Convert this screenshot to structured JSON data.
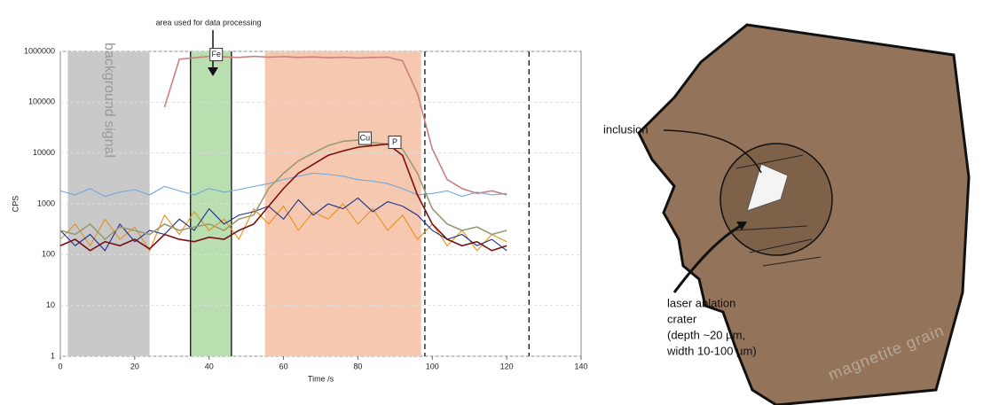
{
  "chart_data": {
    "type": "line",
    "x_label": "Time /s",
    "y_label": "CPS",
    "annotation": "area used for data processing",
    "log_y": true,
    "grid": true,
    "xlim": [
      0,
      140
    ],
    "xticks": [
      0,
      20,
      40,
      60,
      80,
      100,
      120,
      140
    ],
    "ylim": [
      1,
      1000000
    ],
    "yticks": [
      1,
      10,
      100,
      1000,
      10000,
      100000,
      1000000
    ],
    "regions": [
      {
        "label": "background signal",
        "x": [
          2,
          24
        ],
        "color": "#c9c9c9"
      },
      {
        "x": [
          35,
          46
        ],
        "color": "#b9deb0"
      },
      {
        "x": [
          55,
          97
        ],
        "color": "#f7c8b0"
      }
    ],
    "vlines": [
      {
        "x": 35,
        "style": "solid"
      },
      {
        "x": 46,
        "style": "solid"
      },
      {
        "x": 98,
        "style": "dashed"
      },
      {
        "x": 126,
        "style": "dashed"
      }
    ],
    "x": [
      0,
      4,
      8,
      12,
      16,
      20,
      24,
      28,
      32,
      36,
      40,
      44,
      48,
      52,
      56,
      60,
      64,
      68,
      72,
      76,
      80,
      84,
      88,
      92,
      96,
      100,
      104,
      108,
      112,
      116,
      120
    ],
    "series": [
      {
        "color": "#6fa8dc",
        "values": [
          1800,
          1500,
          2000,
          1400,
          1700,
          1900,
          1500,
          2200,
          1800,
          1500,
          2000,
          1700,
          1900,
          2200,
          2500,
          3000,
          3500,
          4000,
          3800,
          3500,
          3000,
          2800,
          2500,
          2000,
          1500,
          1600,
          1800,
          1400,
          1700,
          1500,
          1600
        ]
      },
      {
        "color": "#e8901c",
        "values": [
          200,
          400,
          150,
          500,
          200,
          350,
          120,
          600,
          250,
          700,
          300,
          500,
          200,
          800,
          400,
          900,
          300,
          700,
          500,
          1000,
          400,
          800,
          300,
          600,
          200,
          400,
          150,
          300,
          120,
          250,
          180
        ]
      },
      {
        "color": "#1b2f8a",
        "values": [
          300,
          150,
          250,
          120,
          400,
          180,
          300,
          250,
          500,
          300,
          800,
          400,
          600,
          700,
          900,
          500,
          1200,
          600,
          1000,
          800,
          1300,
          700,
          1100,
          900,
          600,
          300,
          200,
          250,
          150,
          200,
          120
        ]
      },
      {
        "name": "Fe",
        "color": "#c98080",
        "values": [
          null,
          null,
          null,
          null,
          null,
          null,
          null,
          80000,
          700000,
          750000,
          800000,
          780000,
          760000,
          800000,
          770000,
          790000,
          760000,
          780000,
          750000,
          770000,
          740000,
          760000,
          770000,
          650000,
          150000,
          12000,
          3000,
          2000,
          1600,
          1800,
          1500
        ]
      },
      {
        "name": "Cu",
        "color": "#9a9a70",
        "values": [
          300,
          250,
          400,
          200,
          350,
          300,
          250,
          400,
          300,
          350,
          400,
          300,
          500,
          600,
          2000,
          4000,
          7000,
          10000,
          14000,
          17000,
          18000,
          16000,
          15000,
          12000,
          4000,
          800,
          400,
          300,
          350,
          250,
          300
        ]
      },
      {
        "name": "P",
        "color": "#7a1010",
        "values": [
          150,
          200,
          120,
          180,
          150,
          200,
          130,
          250,
          200,
          180,
          220,
          200,
          300,
          400,
          900,
          2000,
          4000,
          6000,
          9000,
          11000,
          13000,
          14000,
          15000,
          9000,
          1500,
          400,
          200,
          150,
          180,
          120,
          150
        ]
      }
    ]
  },
  "diagram": {
    "inclusion": "inclusion",
    "crater": [
      "laser ablation",
      "crater",
      "(depth ~20 µm,",
      "width 10-100 µm)"
    ],
    "grain": "magnetite grain"
  }
}
